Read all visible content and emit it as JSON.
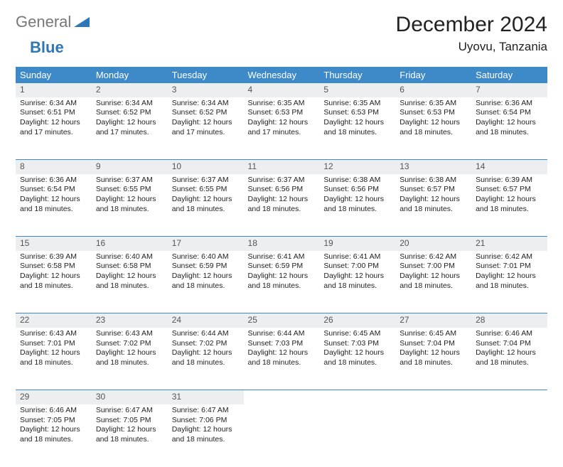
{
  "logo": {
    "part1": "General",
    "part2": "Blue"
  },
  "title": "December 2024",
  "location": "Uyovu, Tanzania",
  "colors": {
    "header_bg": "#3e8ac8",
    "daynum_bg": "#eceef0",
    "rule": "#3e8ac8",
    "logo_gray": "#777777",
    "logo_blue": "#2e76b6"
  },
  "weekdays": [
    "Sunday",
    "Monday",
    "Tuesday",
    "Wednesday",
    "Thursday",
    "Friday",
    "Saturday"
  ],
  "weeks": [
    [
      {
        "n": "1",
        "sr": "6:34 AM",
        "ss": "6:51 PM",
        "dl": "12 hours and 17 minutes."
      },
      {
        "n": "2",
        "sr": "6:34 AM",
        "ss": "6:52 PM",
        "dl": "12 hours and 17 minutes."
      },
      {
        "n": "3",
        "sr": "6:34 AM",
        "ss": "6:52 PM",
        "dl": "12 hours and 17 minutes."
      },
      {
        "n": "4",
        "sr": "6:35 AM",
        "ss": "6:53 PM",
        "dl": "12 hours and 17 minutes."
      },
      {
        "n": "5",
        "sr": "6:35 AM",
        "ss": "6:53 PM",
        "dl": "12 hours and 18 minutes."
      },
      {
        "n": "6",
        "sr": "6:35 AM",
        "ss": "6:53 PM",
        "dl": "12 hours and 18 minutes."
      },
      {
        "n": "7",
        "sr": "6:36 AM",
        "ss": "6:54 PM",
        "dl": "12 hours and 18 minutes."
      }
    ],
    [
      {
        "n": "8",
        "sr": "6:36 AM",
        "ss": "6:54 PM",
        "dl": "12 hours and 18 minutes."
      },
      {
        "n": "9",
        "sr": "6:37 AM",
        "ss": "6:55 PM",
        "dl": "12 hours and 18 minutes."
      },
      {
        "n": "10",
        "sr": "6:37 AM",
        "ss": "6:55 PM",
        "dl": "12 hours and 18 minutes."
      },
      {
        "n": "11",
        "sr": "6:37 AM",
        "ss": "6:56 PM",
        "dl": "12 hours and 18 minutes."
      },
      {
        "n": "12",
        "sr": "6:38 AM",
        "ss": "6:56 PM",
        "dl": "12 hours and 18 minutes."
      },
      {
        "n": "13",
        "sr": "6:38 AM",
        "ss": "6:57 PM",
        "dl": "12 hours and 18 minutes."
      },
      {
        "n": "14",
        "sr": "6:39 AM",
        "ss": "6:57 PM",
        "dl": "12 hours and 18 minutes."
      }
    ],
    [
      {
        "n": "15",
        "sr": "6:39 AM",
        "ss": "6:58 PM",
        "dl": "12 hours and 18 minutes."
      },
      {
        "n": "16",
        "sr": "6:40 AM",
        "ss": "6:58 PM",
        "dl": "12 hours and 18 minutes."
      },
      {
        "n": "17",
        "sr": "6:40 AM",
        "ss": "6:59 PM",
        "dl": "12 hours and 18 minutes."
      },
      {
        "n": "18",
        "sr": "6:41 AM",
        "ss": "6:59 PM",
        "dl": "12 hours and 18 minutes."
      },
      {
        "n": "19",
        "sr": "6:41 AM",
        "ss": "7:00 PM",
        "dl": "12 hours and 18 minutes."
      },
      {
        "n": "20",
        "sr": "6:42 AM",
        "ss": "7:00 PM",
        "dl": "12 hours and 18 minutes."
      },
      {
        "n": "21",
        "sr": "6:42 AM",
        "ss": "7:01 PM",
        "dl": "12 hours and 18 minutes."
      }
    ],
    [
      {
        "n": "22",
        "sr": "6:43 AM",
        "ss": "7:01 PM",
        "dl": "12 hours and 18 minutes."
      },
      {
        "n": "23",
        "sr": "6:43 AM",
        "ss": "7:02 PM",
        "dl": "12 hours and 18 minutes."
      },
      {
        "n": "24",
        "sr": "6:44 AM",
        "ss": "7:02 PM",
        "dl": "12 hours and 18 minutes."
      },
      {
        "n": "25",
        "sr": "6:44 AM",
        "ss": "7:03 PM",
        "dl": "12 hours and 18 minutes."
      },
      {
        "n": "26",
        "sr": "6:45 AM",
        "ss": "7:03 PM",
        "dl": "12 hours and 18 minutes."
      },
      {
        "n": "27",
        "sr": "6:45 AM",
        "ss": "7:04 PM",
        "dl": "12 hours and 18 minutes."
      },
      {
        "n": "28",
        "sr": "6:46 AM",
        "ss": "7:04 PM",
        "dl": "12 hours and 18 minutes."
      }
    ],
    [
      {
        "n": "29",
        "sr": "6:46 AM",
        "ss": "7:05 PM",
        "dl": "12 hours and 18 minutes."
      },
      {
        "n": "30",
        "sr": "6:47 AM",
        "ss": "7:05 PM",
        "dl": "12 hours and 18 minutes."
      },
      {
        "n": "31",
        "sr": "6:47 AM",
        "ss": "7:06 PM",
        "dl": "12 hours and 18 minutes."
      },
      null,
      null,
      null,
      null
    ]
  ],
  "labels": {
    "sunrise": "Sunrise:",
    "sunset": "Sunset:",
    "daylight": "Daylight:"
  }
}
